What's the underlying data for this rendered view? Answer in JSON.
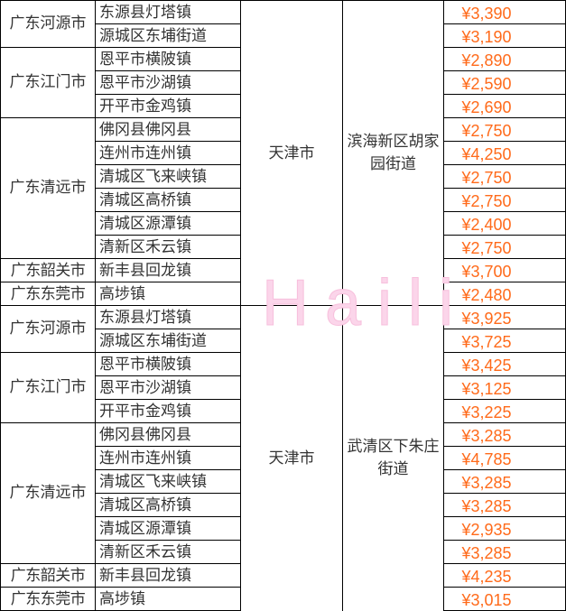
{
  "currency": "¥",
  "watermark": "Haili",
  "colors": {
    "price": "#ff6a1a",
    "watermark": "#fbd5ea"
  },
  "sections": [
    {
      "city": "天津市",
      "district": "滨海新区胡家园街道",
      "groups": [
        {
          "origin": "广东河源市",
          "rows": [
            [
              "东源县灯塔镇",
              "¥3,390"
            ],
            [
              "源城区东埔街道",
              "¥3,190"
            ]
          ]
        },
        {
          "origin": "广东江门市",
          "rows": [
            [
              "恩平市横陂镇",
              "¥2,890"
            ],
            [
              "恩平市沙湖镇",
              "¥2,590"
            ],
            [
              "开平市金鸡镇",
              "¥2,690"
            ]
          ]
        },
        {
          "origin": "广东清远市",
          "rows": [
            [
              "佛冈县佛冈县",
              "¥2,750"
            ],
            [
              "连州市连州镇",
              "¥4,250"
            ],
            [
              "清城区飞来峡镇",
              "¥2,750"
            ],
            [
              "清城区高桥镇",
              "¥2,750"
            ],
            [
              "清城区源潭镇",
              "¥2,400"
            ],
            [
              "清新区禾云镇",
              "¥2,750"
            ]
          ]
        },
        {
          "origin": "广东韶关市",
          "rows": [
            [
              "新丰县回龙镇",
              "¥3,700"
            ]
          ]
        },
        {
          "origin": "广东东莞市",
          "rows": [
            [
              "高埗镇",
              "¥2,480"
            ]
          ]
        }
      ]
    },
    {
      "city": "天津市",
      "district": "武清区下朱庄街道",
      "groups": [
        {
          "origin": "广东河源市",
          "rows": [
            [
              "东源县灯塔镇",
              "¥3,925"
            ],
            [
              "源城区东埔街道",
              "¥3,725"
            ]
          ]
        },
        {
          "origin": "广东江门市",
          "rows": [
            [
              "恩平市横陂镇",
              "¥3,425"
            ],
            [
              "恩平市沙湖镇",
              "¥3,125"
            ],
            [
              "开平市金鸡镇",
              "¥3,225"
            ]
          ]
        },
        {
          "origin": "广东清远市",
          "rows": [
            [
              "佛冈县佛冈县",
              "¥3,285"
            ],
            [
              "连州市连州镇",
              "¥4,785"
            ],
            [
              "清城区飞来峡镇",
              "¥3,285"
            ],
            [
              "清城区高桥镇",
              "¥3,285"
            ],
            [
              "清城区源潭镇",
              "¥2,935"
            ],
            [
              "清新区禾云镇",
              "¥3,285"
            ]
          ]
        },
        {
          "origin": "广东韶关市",
          "rows": [
            [
              "新丰县回龙镇",
              "¥4,235"
            ]
          ]
        },
        {
          "origin": "广东东莞市",
          "rows": [
            [
              "高埗镇",
              "¥3,015"
            ]
          ]
        }
      ]
    }
  ]
}
